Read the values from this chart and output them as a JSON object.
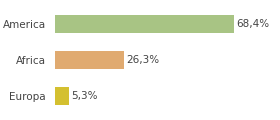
{
  "categories": [
    "Europa",
    "Africa",
    "America"
  ],
  "values": [
    68.4,
    26.3,
    5.3
  ],
  "labels": [
    "68,4%",
    "26,3%",
    "5,3%"
  ],
  "bar_colors": [
    "#a8c484",
    "#e0aa70",
    "#d4c030"
  ],
  "background_color": "#ffffff",
  "xlim": [
    0,
    85
  ],
  "bar_height": 0.5,
  "figsize": [
    2.8,
    1.2
  ],
  "dpi": 100,
  "label_fontsize": 7.5,
  "tick_fontsize": 7.5
}
